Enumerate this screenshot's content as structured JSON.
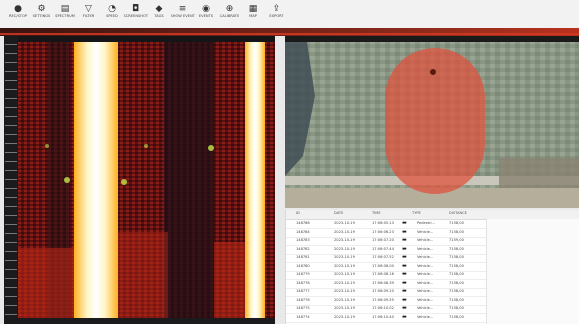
{
  "toolbar": {
    "buttons": [
      {
        "label": "REC/STOP",
        "icon": "record-icon"
      },
      {
        "label": "SETTINGS",
        "icon": "settings-icon"
      },
      {
        "label": "SPECTRUM",
        "icon": "spectrum-icon"
      },
      {
        "label": "FILTER",
        "icon": "filter-icon"
      },
      {
        "label": "SPEED",
        "icon": "speed-icon"
      },
      {
        "label": "SCREENSHOT",
        "icon": "camera-icon"
      },
      {
        "label": "TAGS",
        "icon": "tag-icon"
      },
      {
        "label": "SHOW EVENTS",
        "icon": "list-icon"
      },
      {
        "label": "EVENTS",
        "icon": "bell-icon"
      },
      {
        "label": "CALIBRATE",
        "icon": "target-icon"
      },
      {
        "label": "MAP",
        "icon": "map-icon"
      },
      {
        "label": "EXPORT",
        "icon": "export-icon"
      }
    ]
  },
  "colors": {
    "accent": "#b8321e",
    "zone": "#e0503a",
    "road": "#c9c6bb"
  },
  "table": {
    "headers": [
      "ID",
      "DATE",
      "TIME",
      "TYPE",
      "DISTANCE"
    ],
    "rows": [
      {
        "id": "148786",
        "date": "2023-10-19",
        "time": "17:06:05.13",
        "type": "Pedestri...",
        "dist": "7158,00"
      },
      {
        "id": "148784",
        "date": "2023-10-19",
        "time": "17:06:06.23",
        "type": "Vehicle...",
        "dist": "7158,00"
      },
      {
        "id": "148783",
        "date": "2023-10-19",
        "time": "17:06:07.20",
        "type": "Vehicle...",
        "dist": "7159,00"
      },
      {
        "id": "148782",
        "date": "2023-10-19",
        "time": "17:06:07.44",
        "type": "Vehicle...",
        "dist": "7158,00"
      },
      {
        "id": "148781",
        "date": "2023-10-19",
        "time": "17:06:07.52",
        "type": "Vehicle...",
        "dist": "7158,00"
      },
      {
        "id": "148780",
        "date": "2023-10-19",
        "time": "17:06:08.00",
        "type": "Vehicle...",
        "dist": "7158,00"
      },
      {
        "id": "148779",
        "date": "2023-10-19",
        "time": "17:06:08.16",
        "type": "Vehicle...",
        "dist": "7158,00"
      },
      {
        "id": "148778",
        "date": "2023-10-19",
        "time": "17:06:08.39",
        "type": "Vehicle...",
        "dist": "7158,00"
      },
      {
        "id": "148777",
        "date": "2023-10-19",
        "time": "17:06:09.10",
        "type": "Vehicle...",
        "dist": "7158,00"
      },
      {
        "id": "148776",
        "date": "2023-10-19",
        "time": "17:06:09.55",
        "type": "Vehicle...",
        "dist": "7158,00"
      },
      {
        "id": "148775",
        "date": "2023-10-19",
        "time": "17:06:10.02",
        "type": "Vehicle...",
        "dist": "7158,00"
      },
      {
        "id": "148774",
        "date": "2023-10-19",
        "time": "17:06:10.40",
        "type": "Vehicle...",
        "dist": "7158,00"
      }
    ]
  }
}
